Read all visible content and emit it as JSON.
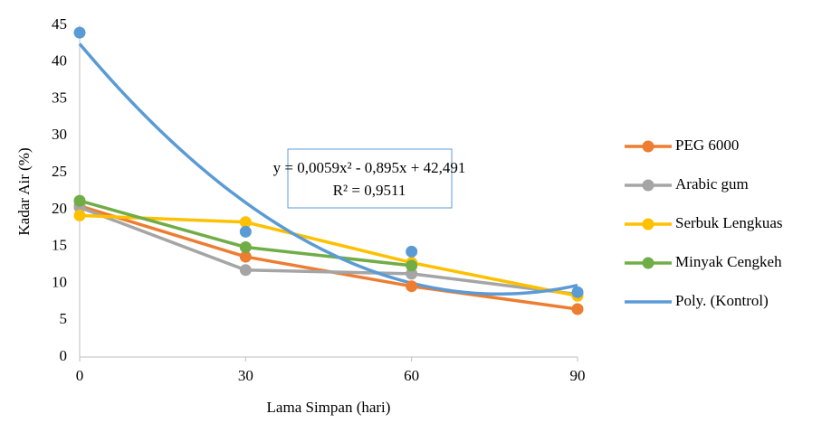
{
  "chart_data": {
    "type": "line",
    "x_label": "Lama Simpan (hari)",
    "y_label": "Kadar Air (%)",
    "x": [
      0,
      30,
      60,
      90
    ],
    "xlim": [
      0,
      90
    ],
    "xticks": [
      0,
      30,
      60,
      90
    ],
    "ylim": [
      0,
      45
    ],
    "yticks": [
      0,
      5,
      10,
      15,
      20,
      25,
      30,
      35,
      40,
      45
    ],
    "grid": false,
    "legend": "right",
    "series": [
      {
        "name": "PEG 6000",
        "color": "#ED7D31",
        "values": [
          20.5,
          13.6,
          9.6,
          6.5
        ]
      },
      {
        "name": "Arabic gum",
        "color": "#A5A5A5",
        "values": [
          20.3,
          11.8,
          11.3,
          8.5
        ]
      },
      {
        "name": "Serbuk Lengkuas",
        "color": "#FFC000",
        "values": [
          19.2,
          18.3,
          12.8,
          8.3
        ]
      },
      {
        "name": "Minyak Cengkeh",
        "color": "#70AD47",
        "values": [
          21.2,
          14.9,
          12.4,
          null
        ]
      },
      {
        "color": "#5B9BD5",
        "values": [
          44,
          17,
          14.3,
          8.8
        ],
        "line": false
      }
    ],
    "trendline": {
      "name": "Poly. (Kontrol)",
      "color": "#5B9BD5",
      "type": "polynomial",
      "coefficients": [
        42.491,
        -0.895,
        0.0059
      ],
      "equation_label": "y = 0,0059x² - 0,895x + 42,491",
      "r2_label": "R² = 0,9511"
    }
  }
}
